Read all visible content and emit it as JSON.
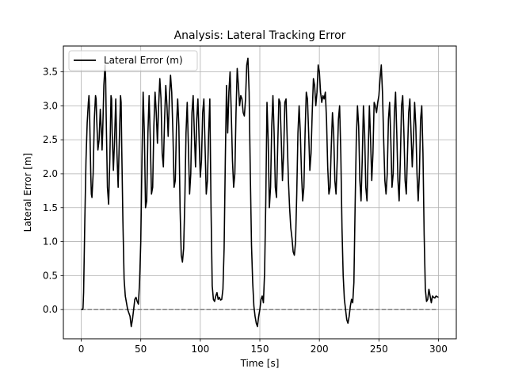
{
  "chart_data": {
    "type": "line",
    "title": "Analysis: Lateral Tracking Error",
    "xlabel": "Time [s]",
    "ylabel": "Lateral Error [m]",
    "xlim": [
      -15,
      315
    ],
    "ylim": [
      -0.43,
      3.88
    ],
    "xticks": [
      0,
      50,
      100,
      150,
      200,
      250,
      300
    ],
    "xtick_labels": [
      "0",
      "50",
      "100",
      "150",
      "200",
      "250",
      "300"
    ],
    "yticks": [
      0.0,
      0.5,
      1.0,
      1.5,
      2.0,
      2.5,
      3.0,
      3.5
    ],
    "ytick_labels": [
      "0.0",
      "0.5",
      "1.0",
      "1.5",
      "2.0",
      "2.5",
      "3.0",
      "3.5"
    ],
    "grid": true,
    "legend": {
      "position": "top-left",
      "entries": [
        "Lateral Error (m)"
      ]
    },
    "series": [
      {
        "name": "Lateral Error (m)",
        "color": "#000000",
        "style": "solid",
        "points": [
          [
            0,
            0.0
          ],
          [
            1,
            0.0
          ],
          [
            1.5,
            0.02
          ],
          [
            2,
            0.25
          ],
          [
            3,
            1.3
          ],
          [
            4,
            2.2
          ],
          [
            5,
            2.75
          ],
          [
            6,
            3.05
          ],
          [
            6.5,
            3.15
          ],
          [
            7,
            2.9
          ],
          [
            8,
            2.0
          ],
          [
            8.5,
            1.7
          ],
          [
            9,
            1.65
          ],
          [
            10,
            2.0
          ],
          [
            11,
            2.8
          ],
          [
            12,
            3.15
          ],
          [
            12.5,
            3.1
          ],
          [
            13,
            2.8
          ],
          [
            14,
            2.35
          ],
          [
            15,
            2.5
          ],
          [
            16,
            2.95
          ],
          [
            17,
            2.6
          ],
          [
            17.5,
            2.35
          ],
          [
            18,
            2.6
          ],
          [
            19,
            3.3
          ],
          [
            20,
            3.6
          ],
          [
            20.5,
            3.4
          ],
          [
            21,
            2.8
          ],
          [
            22,
            1.8
          ],
          [
            23,
            1.55
          ],
          [
            24,
            2.2
          ],
          [
            25,
            3.15
          ],
          [
            25.5,
            3.1
          ],
          [
            26,
            2.6
          ],
          [
            27,
            2.05
          ],
          [
            28,
            2.5
          ],
          [
            29,
            3.1
          ],
          [
            30,
            2.3
          ],
          [
            31,
            1.8
          ],
          [
            32,
            2.5
          ],
          [
            33,
            3.15
          ],
          [
            33.5,
            3.05
          ],
          [
            34,
            2.4
          ],
          [
            35,
            1.3
          ],
          [
            36,
            0.45
          ],
          [
            37,
            0.2
          ],
          [
            38,
            0.1
          ],
          [
            39,
            0.0
          ],
          [
            40,
            -0.05
          ],
          [
            41,
            -0.1
          ],
          [
            42,
            -0.25
          ],
          [
            43,
            -0.15
          ],
          [
            44,
            0.0
          ],
          [
            45,
            0.15
          ],
          [
            46,
            0.18
          ],
          [
            47,
            0.12
          ],
          [
            48,
            0.08
          ],
          [
            49,
            0.4
          ],
          [
            50,
            1.0
          ],
          [
            51,
            2.2
          ],
          [
            52,
            3.2
          ],
          [
            53,
            2.6
          ],
          [
            54,
            1.5
          ],
          [
            55,
            1.6
          ],
          [
            56,
            2.6
          ],
          [
            57,
            3.15
          ],
          [
            58,
            2.5
          ],
          [
            59,
            1.7
          ],
          [
            60,
            1.8
          ],
          [
            61,
            2.7
          ],
          [
            62,
            3.2
          ],
          [
            63,
            2.9
          ],
          [
            64,
            2.45
          ],
          [
            65,
            3.0
          ],
          [
            66,
            3.4
          ],
          [
            67,
            3.1
          ],
          [
            68,
            2.3
          ],
          [
            69,
            2.1
          ],
          [
            70,
            2.8
          ],
          [
            71,
            3.3
          ],
          [
            72,
            3.0
          ],
          [
            73,
            2.55
          ],
          [
            74,
            3.1
          ],
          [
            75,
            3.45
          ],
          [
            76,
            3.2
          ],
          [
            77,
            2.6
          ],
          [
            78,
            1.8
          ],
          [
            79,
            1.9
          ],
          [
            80,
            2.7
          ],
          [
            81,
            3.1
          ],
          [
            82,
            2.7
          ],
          [
            83,
            1.5
          ],
          [
            84,
            0.8
          ],
          [
            85,
            0.7
          ],
          [
            86,
            0.9
          ],
          [
            87,
            1.6
          ],
          [
            88,
            2.6
          ],
          [
            89,
            3.05
          ],
          [
            90,
            2.4
          ],
          [
            91,
            1.7
          ],
          [
            92,
            2.0
          ],
          [
            93,
            2.9
          ],
          [
            94,
            3.15
          ],
          [
            95,
            2.6
          ],
          [
            96,
            2.1
          ],
          [
            97,
            2.8
          ],
          [
            98,
            3.1
          ],
          [
            99,
            2.5
          ],
          [
            100,
            1.95
          ],
          [
            101,
            2.2
          ],
          [
            102,
            2.9
          ],
          [
            103,
            3.1
          ],
          [
            104,
            2.4
          ],
          [
            105,
            1.7
          ],
          [
            106,
            1.9
          ],
          [
            107,
            2.6
          ],
          [
            108,
            3.1
          ],
          [
            109,
            1.5
          ],
          [
            110,
            0.35
          ],
          [
            111,
            0.15
          ],
          [
            112,
            0.12
          ],
          [
            113,
            0.2
          ],
          [
            114,
            0.25
          ],
          [
            115,
            0.15
          ],
          [
            116,
            0.18
          ],
          [
            117,
            0.14
          ],
          [
            118,
            0.15
          ],
          [
            119,
            0.3
          ],
          [
            120,
            0.9
          ],
          [
            121,
            2.2
          ],
          [
            122,
            3.3
          ],
          [
            123,
            2.6
          ],
          [
            124,
            3.2
          ],
          [
            125,
            3.5
          ],
          [
            126,
            2.9
          ],
          [
            127,
            2.2
          ],
          [
            128,
            1.8
          ],
          [
            129,
            2.0
          ],
          [
            130,
            2.9
          ],
          [
            131,
            3.55
          ],
          [
            132,
            3.3
          ],
          [
            133,
            3.0
          ],
          [
            134,
            3.15
          ],
          [
            135,
            3.1
          ],
          [
            136,
            2.9
          ],
          [
            137,
            2.85
          ],
          [
            138,
            3.1
          ],
          [
            139,
            3.6
          ],
          [
            140,
            3.7
          ],
          [
            141,
            3.2
          ],
          [
            142,
            2.0
          ],
          [
            143,
            0.95
          ],
          [
            144,
            0.4
          ],
          [
            145,
            0.05
          ],
          [
            146,
            -0.1
          ],
          [
            147,
            -0.2
          ],
          [
            148,
            -0.25
          ],
          [
            149,
            -0.1
          ],
          [
            150,
            0.0
          ],
          [
            151,
            0.15
          ],
          [
            152,
            0.2
          ],
          [
            153,
            0.1
          ],
          [
            154,
            0.55
          ],
          [
            155,
            1.6
          ],
          [
            156,
            3.05
          ],
          [
            157,
            2.5
          ],
          [
            158,
            1.5
          ],
          [
            159,
            1.8
          ],
          [
            160,
            2.7
          ],
          [
            161,
            3.15
          ],
          [
            162,
            2.6
          ],
          [
            163,
            1.8
          ],
          [
            164,
            1.65
          ],
          [
            165,
            2.4
          ],
          [
            166,
            3.1
          ],
          [
            167,
            3.05
          ],
          [
            168,
            2.5
          ],
          [
            169,
            1.9
          ],
          [
            170,
            2.3
          ],
          [
            171,
            3.05
          ],
          [
            172,
            3.1
          ],
          [
            173,
            2.5
          ],
          [
            174,
            1.9
          ],
          [
            175,
            1.5
          ],
          [
            176,
            1.2
          ],
          [
            177,
            1.05
          ],
          [
            178,
            0.85
          ],
          [
            179,
            0.8
          ],
          [
            180,
            1.0
          ],
          [
            181,
            1.7
          ],
          [
            182,
            2.6
          ],
          [
            183,
            3.0
          ],
          [
            184,
            2.6
          ],
          [
            185,
            2.0
          ],
          [
            186,
            1.6
          ],
          [
            187,
            1.8
          ],
          [
            188,
            2.6
          ],
          [
            189,
            3.2
          ],
          [
            190,
            3.1
          ],
          [
            191,
            2.6
          ],
          [
            192,
            2.05
          ],
          [
            193,
            2.3
          ],
          [
            194,
            2.9
          ],
          [
            195,
            3.4
          ],
          [
            196,
            3.3
          ],
          [
            197,
            3.0
          ],
          [
            198,
            3.2
          ],
          [
            199,
            3.6
          ],
          [
            200,
            3.5
          ],
          [
            201,
            3.2
          ],
          [
            202,
            3.05
          ],
          [
            203,
            3.15
          ],
          [
            204,
            3.1
          ],
          [
            205,
            3.2
          ],
          [
            206,
            2.8
          ],
          [
            207,
            2.1
          ],
          [
            208,
            1.7
          ],
          [
            209,
            1.8
          ],
          [
            210,
            2.4
          ],
          [
            211,
            2.9
          ],
          [
            212,
            2.6
          ],
          [
            213,
            1.9
          ],
          [
            214,
            1.7
          ],
          [
            215,
            2.2
          ],
          [
            216,
            2.8
          ],
          [
            217,
            3.0
          ],
          [
            218,
            2.3
          ],
          [
            219,
            1.2
          ],
          [
            220,
            0.5
          ],
          [
            221,
            0.15
          ],
          [
            222,
            0.0
          ],
          [
            223,
            -0.15
          ],
          [
            224,
            -0.2
          ],
          [
            225,
            -0.1
          ],
          [
            226,
            0.05
          ],
          [
            227,
            0.15
          ],
          [
            228,
            0.1
          ],
          [
            229,
            0.4
          ],
          [
            230,
            1.5
          ],
          [
            231,
            2.5
          ],
          [
            232,
            3.0
          ],
          [
            233,
            2.7
          ],
          [
            234,
            1.9
          ],
          [
            235,
            1.6
          ],
          [
            236,
            2.2
          ],
          [
            237,
            3.0
          ],
          [
            238,
            2.6
          ],
          [
            239,
            1.8
          ],
          [
            240,
            1.6
          ],
          [
            241,
            2.3
          ],
          [
            242,
            3.0
          ],
          [
            243,
            2.5
          ],
          [
            244,
            1.9
          ],
          [
            245,
            2.3
          ],
          [
            246,
            3.05
          ],
          [
            247,
            3.0
          ],
          [
            248,
            2.9
          ],
          [
            249,
            3.05
          ],
          [
            250,
            3.15
          ],
          [
            251,
            3.4
          ],
          [
            252,
            3.6
          ],
          [
            253,
            3.2
          ],
          [
            254,
            2.5
          ],
          [
            255,
            1.9
          ],
          [
            256,
            1.7
          ],
          [
            257,
            2.0
          ],
          [
            258,
            2.8
          ],
          [
            259,
            3.05
          ],
          [
            260,
            2.5
          ],
          [
            261,
            1.8
          ],
          [
            262,
            2.0
          ],
          [
            263,
            2.9
          ],
          [
            264,
            3.2
          ],
          [
            265,
            2.6
          ],
          [
            266,
            1.9
          ],
          [
            267,
            1.6
          ],
          [
            268,
            2.2
          ],
          [
            269,
            3.0
          ],
          [
            270,
            3.15
          ],
          [
            271,
            2.6
          ],
          [
            272,
            1.9
          ],
          [
            273,
            1.7
          ],
          [
            274,
            2.3
          ],
          [
            275,
            2.9
          ],
          [
            276,
            3.1
          ],
          [
            277,
            2.6
          ],
          [
            278,
            2.1
          ],
          [
            279,
            2.5
          ],
          [
            280,
            3.05
          ],
          [
            281,
            2.7
          ],
          [
            282,
            2.0
          ],
          [
            283,
            1.6
          ],
          [
            284,
            2.0
          ],
          [
            285,
            2.8
          ],
          [
            286,
            3.0
          ],
          [
            287,
            2.3
          ],
          [
            288,
            1.1
          ],
          [
            289,
            0.3
          ],
          [
            290,
            0.12
          ],
          [
            291,
            0.15
          ],
          [
            292,
            0.3
          ],
          [
            293,
            0.2
          ],
          [
            294,
            0.1
          ],
          [
            295,
            0.2
          ],
          [
            296,
            0.18
          ],
          [
            297,
            0.17
          ],
          [
            298,
            0.2
          ],
          [
            299,
            0.19
          ],
          [
            300,
            0.18
          ]
        ]
      },
      {
        "name": "",
        "color": "#7f7f7f",
        "style": "dashed",
        "points": [
          [
            0,
            0.0
          ],
          [
            300,
            0.0
          ]
        ]
      }
    ]
  }
}
